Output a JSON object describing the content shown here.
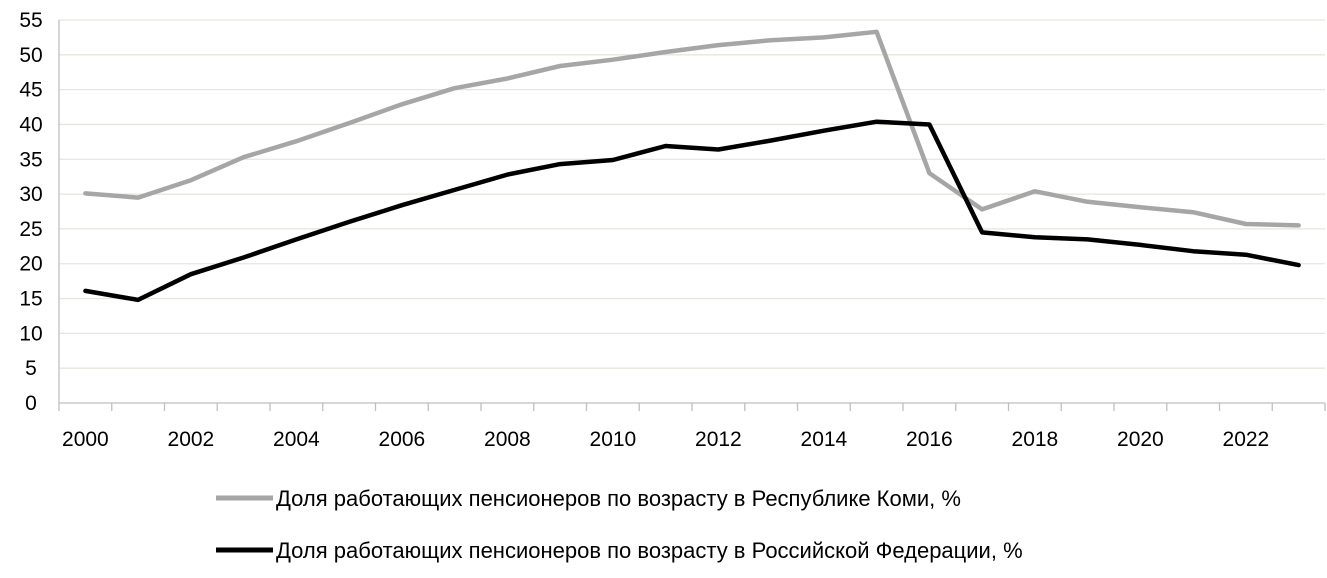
{
  "chart_data": {
    "type": "line",
    "title": "",
    "xlabel": "",
    "ylabel": "",
    "x": [
      2000,
      2001,
      2002,
      2003,
      2004,
      2005,
      2006,
      2007,
      2008,
      2009,
      2010,
      2011,
      2012,
      2013,
      2014,
      2015,
      2016,
      2017,
      2018,
      2019,
      2020,
      2021,
      2022,
      2023
    ],
    "x_tick_labels": [
      "2000",
      "2002",
      "2004",
      "2006",
      "2008",
      "2010",
      "2012",
      "2014",
      "2016",
      "2018",
      "2020",
      "2022"
    ],
    "y_tick_labels": [
      "0",
      "5",
      "10",
      "15",
      "20",
      "25",
      "30",
      "35",
      "40",
      "45",
      "50",
      "55"
    ],
    "ylim": [
      0,
      55
    ],
    "grid": true,
    "legend_position": "bottom",
    "series": [
      {
        "name": "Доля работающих пенсионеров по возрасту в Республике Коми, %",
        "color": "#a6a6a6",
        "values": [
          30.1,
          29.5,
          32.0,
          35.3,
          37.6,
          40.2,
          42.9,
          45.2,
          46.6,
          48.4,
          49.3,
          50.4,
          51.4,
          52.1,
          52.5,
          53.3,
          33.0,
          27.8,
          30.4,
          28.9,
          28.1,
          27.4,
          25.7,
          25.5
        ]
      },
      {
        "name": "Доля работающих пенсионеров по возрасту в Российской Федерации, %",
        "color": "#000000",
        "values": [
          16.1,
          14.8,
          18.5,
          20.9,
          23.5,
          26.0,
          28.4,
          30.6,
          32.8,
          34.3,
          34.9,
          36.9,
          36.4,
          37.7,
          39.1,
          40.4,
          40.0,
          24.5,
          23.8,
          23.5,
          22.7,
          21.8,
          21.3,
          19.8
        ]
      }
    ]
  }
}
